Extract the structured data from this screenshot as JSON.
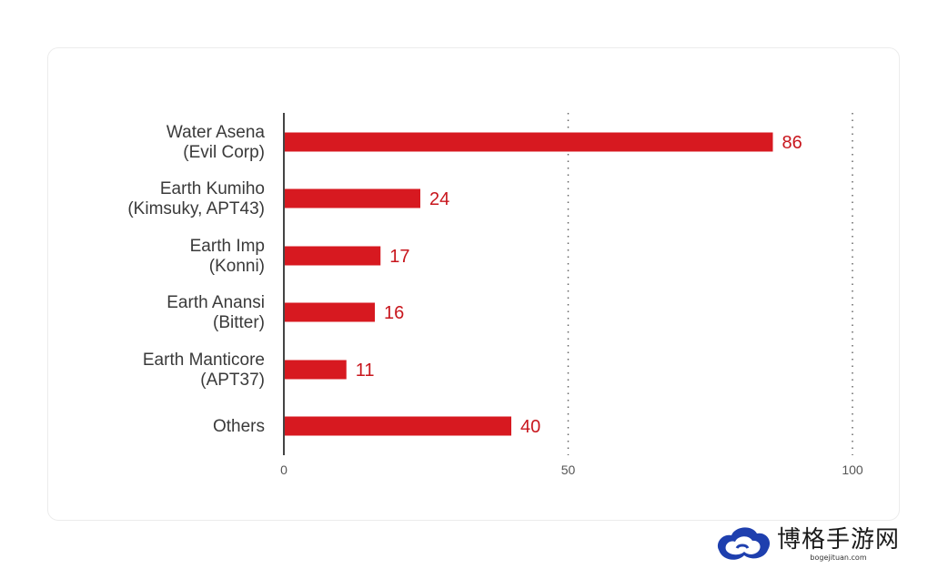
{
  "chart_data": {
    "type": "bar",
    "orientation": "horizontal",
    "categories": [
      [
        "Water Asena",
        "(Evil Corp)"
      ],
      [
        "Earth Kumiho",
        "(Kimsuky, APT43)"
      ],
      [
        "Earth Imp",
        "(Konni)"
      ],
      [
        "Earth Anansi",
        "(Bitter)"
      ],
      [
        "Earth Manticore",
        "(APT37)"
      ],
      [
        "Others"
      ]
    ],
    "values": [
      86,
      24,
      17,
      16,
      11,
      40
    ],
    "value_labels": [
      "86",
      "24",
      "17",
      "16",
      "11",
      "40"
    ],
    "xlim": [
      0,
      100
    ],
    "x_ticks": [
      0,
      50,
      100
    ],
    "x_tick_labels": [
      "0",
      "50",
      "100"
    ],
    "grid": "vertical-dotted",
    "bar_color": "#d71920",
    "value_label_color": "#c8161d"
  },
  "watermark": {
    "title": "博格手游网",
    "subtitle": "bogejituan.com"
  }
}
